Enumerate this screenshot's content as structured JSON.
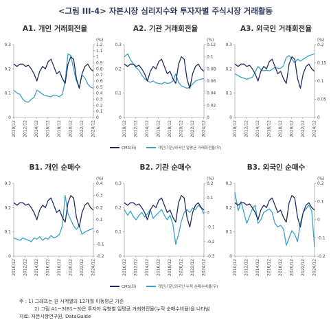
{
  "figure_title": "<그림 III-4> 자본시장 심리지수와 투자자별 주식시장 거래활동",
  "x_ticks": [
    "2010/12",
    "2012/12",
    "2014/12",
    "2016/12",
    "2018/12",
    "2020/12",
    "2022/12",
    "2024/12"
  ],
  "legend_top": {
    "cms": "CMS(좌)",
    "other": "개인/기관/외국인 일평균 거래회전율(우)"
  },
  "legend_bottom": {
    "cms": "CMS(좌)",
    "other": "개인/기관/외국인 누적 순매수비율(우)"
  },
  "colors": {
    "cms": "#1f2a5c",
    "other": "#3aa0c8"
  },
  "notes": {
    "line1": "주   : 1) 그래프는 원 시계열의 12개월 이동평균 기준",
    "line2": "2) 그림 A1~3(B1~3)은 투자자 유형별 일평균 거래회전율(누적 순매수비율)을 나타냄",
    "line3": "자료: 자본시장연구원, DataGuide"
  },
  "chart_data": [
    {
      "type": "line",
      "title": "A1. 개인 거래회전율",
      "right_unit": "(%)",
      "x_start": 2010.9,
      "x_end": 2025.0,
      "ylim_left": [
        0,
        0.3
      ],
      "yticks_left": [
        0,
        0.1,
        0.2,
        0.3
      ],
      "ylim_right": [
        0,
        1.2
      ],
      "yticks_right": [
        0,
        0.1,
        0.2,
        0.3,
        0.4,
        0.5,
        0.6,
        0.7,
        0.8,
        0.9,
        1.0,
        1.1,
        1.2
      ],
      "series": [
        {
          "key": "cms",
          "axis": "left",
          "x": [
            2010.9,
            2011.5,
            2012.0,
            2012.5,
            2013.0,
            2013.5,
            2014.0,
            2014.5,
            2015.0,
            2015.5,
            2016.0,
            2016.5,
            2017.0,
            2017.5,
            2018.0,
            2018.5,
            2019.0,
            2019.5,
            2020.0,
            2020.5,
            2021.0,
            2021.5,
            2022.0,
            2022.5,
            2023.0,
            2023.5,
            2024.0,
            2024.5,
            2025.0
          ],
          "values": [
            0.22,
            0.21,
            0.22,
            0.22,
            0.21,
            0.215,
            0.2,
            0.18,
            0.15,
            0.19,
            0.21,
            0.2,
            0.23,
            0.24,
            0.21,
            0.18,
            0.19,
            0.16,
            0.14,
            0.22,
            0.25,
            0.24,
            0.16,
            0.12,
            0.18,
            0.21,
            0.22,
            0.2,
            0.19
          ]
        },
        {
          "key": "other",
          "axis": "right",
          "x": [
            2010.9,
            2011.5,
            2012.0,
            2012.5,
            2013.0,
            2013.5,
            2014.0,
            2014.5,
            2015.0,
            2015.5,
            2016.0,
            2016.5,
            2017.0,
            2017.5,
            2018.0,
            2018.5,
            2019.0,
            2019.5,
            2020.0,
            2020.5,
            2021.0,
            2021.5,
            2022.0,
            2022.5,
            2023.0,
            2023.5,
            2024.0,
            2024.5,
            2025.0
          ],
          "values": [
            0.45,
            0.4,
            0.38,
            0.3,
            0.26,
            0.25,
            0.3,
            0.33,
            0.45,
            0.42,
            0.38,
            0.36,
            0.35,
            0.34,
            0.37,
            0.36,
            0.34,
            0.38,
            0.6,
            1.05,
            1.02,
            0.8,
            0.6,
            0.5,
            0.7,
            0.65,
            0.55,
            0.5,
            0.48
          ]
        }
      ]
    },
    {
      "type": "line",
      "title": "A2. 기관 거래회전율",
      "right_unit": "(%)",
      "x_start": 2010.9,
      "x_end": 2025.0,
      "ylim_left": [
        0,
        0.3
      ],
      "yticks_left": [
        0,
        0.1,
        0.2,
        0.3
      ],
      "ylim_right": [
        0,
        0.12
      ],
      "yticks_right": [
        0,
        0.02,
        0.04,
        0.06,
        0.08,
        0.1,
        0.12
      ],
      "series": [
        {
          "key": "cms",
          "axis": "left",
          "x": [
            2010.9,
            2011.5,
            2012.0,
            2012.5,
            2013.0,
            2013.5,
            2014.0,
            2014.5,
            2015.0,
            2015.5,
            2016.0,
            2016.5,
            2017.0,
            2017.5,
            2018.0,
            2018.5,
            2019.0,
            2019.5,
            2020.0,
            2020.5,
            2021.0,
            2021.5,
            2022.0,
            2022.5,
            2023.0,
            2023.5,
            2024.0,
            2024.5,
            2025.0
          ],
          "values": [
            0.22,
            0.21,
            0.22,
            0.22,
            0.21,
            0.215,
            0.2,
            0.18,
            0.15,
            0.19,
            0.21,
            0.2,
            0.23,
            0.24,
            0.21,
            0.18,
            0.19,
            0.16,
            0.14,
            0.22,
            0.25,
            0.24,
            0.16,
            0.12,
            0.18,
            0.21,
            0.22,
            0.2,
            0.19
          ]
        },
        {
          "key": "other",
          "axis": "right",
          "x": [
            2010.9,
            2011.5,
            2012.0,
            2012.5,
            2013.0,
            2013.5,
            2014.0,
            2014.5,
            2015.0,
            2015.5,
            2016.0,
            2016.5,
            2017.0,
            2017.5,
            2018.0,
            2018.5,
            2019.0,
            2019.5,
            2020.0,
            2020.5,
            2021.0,
            2021.5,
            2022.0,
            2022.5,
            2023.0,
            2023.5,
            2024.0,
            2024.5,
            2025.0
          ],
          "values": [
            0.1,
            0.105,
            0.095,
            0.088,
            0.082,
            0.078,
            0.07,
            0.064,
            0.06,
            0.058,
            0.06,
            0.057,
            0.056,
            0.055,
            0.058,
            0.056,
            0.057,
            0.06,
            0.072,
            0.058,
            0.052,
            0.05,
            0.048,
            0.05,
            0.055,
            0.06,
            0.062,
            0.063,
            0.064
          ]
        }
      ]
    },
    {
      "type": "line",
      "title": "A3. 외국인 거래회전율",
      "right_unit": "(%)",
      "x_start": 2010.9,
      "x_end": 2025.0,
      "ylim_left": [
        0,
        0.3
      ],
      "yticks_left": [
        0,
        0.1,
        0.2,
        0.3
      ],
      "ylim_right": [
        0,
        0.2
      ],
      "yticks_right": [
        0,
        0.05,
        0.1,
        0.15,
        0.2
      ],
      "series": [
        {
          "key": "cms",
          "axis": "left",
          "x": [
            2010.9,
            2011.5,
            2012.0,
            2012.5,
            2013.0,
            2013.5,
            2014.0,
            2014.5,
            2015.0,
            2015.5,
            2016.0,
            2016.5,
            2017.0,
            2017.5,
            2018.0,
            2018.5,
            2019.0,
            2019.5,
            2020.0,
            2020.5,
            2021.0,
            2021.5,
            2022.0,
            2022.5,
            2023.0,
            2023.5,
            2024.0,
            2024.5,
            2025.0
          ],
          "values": [
            0.22,
            0.21,
            0.22,
            0.22,
            0.21,
            0.215,
            0.2,
            0.18,
            0.15,
            0.19,
            0.21,
            0.2,
            0.23,
            0.24,
            0.21,
            0.18,
            0.19,
            0.16,
            0.14,
            0.22,
            0.25,
            0.24,
            0.16,
            0.12,
            0.18,
            0.21,
            0.22,
            0.2,
            0.19
          ]
        },
        {
          "key": "other",
          "axis": "right",
          "x": [
            2010.9,
            2011.5,
            2012.0,
            2012.5,
            2013.0,
            2013.5,
            2014.0,
            2014.5,
            2015.0,
            2015.5,
            2016.0,
            2016.5,
            2017.0,
            2017.5,
            2018.0,
            2018.5,
            2019.0,
            2019.5,
            2020.0,
            2020.5,
            2021.0,
            2021.5,
            2022.0,
            2022.5,
            2023.0,
            2023.5,
            2024.0,
            2024.5,
            2025.0
          ],
          "values": [
            0.12,
            0.115,
            0.11,
            0.108,
            0.105,
            0.108,
            0.11,
            0.125,
            0.14,
            0.132,
            0.128,
            0.13,
            0.128,
            0.132,
            0.138,
            0.135,
            0.135,
            0.142,
            0.165,
            0.17,
            0.16,
            0.15,
            0.16,
            0.155,
            0.16,
            0.165,
            0.17,
            0.172,
            0.175
          ]
        }
      ]
    },
    {
      "type": "line",
      "title": "B1. 개인 순매수",
      "right_unit": "(%)",
      "x_start": 2010.9,
      "x_end": 2025.0,
      "ylim_left": [
        0,
        0.3
      ],
      "yticks_left": [
        0,
        0.1,
        0.2,
        0.3
      ],
      "ylim_right": [
        -0.2,
        0.4
      ],
      "yticks_right": [
        -0.2,
        -0.1,
        0,
        0.1,
        0.2,
        0.3,
        0.4
      ],
      "series": [
        {
          "key": "cms",
          "axis": "left",
          "x": [
            2010.9,
            2011.5,
            2012.0,
            2012.5,
            2013.0,
            2013.5,
            2014.0,
            2014.5,
            2015.0,
            2015.5,
            2016.0,
            2016.5,
            2017.0,
            2017.5,
            2018.0,
            2018.5,
            2019.0,
            2019.5,
            2020.0,
            2020.5,
            2021.0,
            2021.5,
            2022.0,
            2022.5,
            2023.0,
            2023.5,
            2024.0,
            2024.5,
            2025.0
          ],
          "values": [
            0.22,
            0.21,
            0.22,
            0.22,
            0.21,
            0.215,
            0.2,
            0.18,
            0.15,
            0.19,
            0.21,
            0.2,
            0.23,
            0.24,
            0.21,
            0.18,
            0.19,
            0.16,
            0.14,
            0.22,
            0.25,
            0.24,
            0.16,
            0.12,
            0.18,
            0.21,
            0.22,
            0.2,
            0.19
          ]
        },
        {
          "key": "other",
          "axis": "right",
          "x": [
            2010.9,
            2011.5,
            2012.0,
            2012.5,
            2013.0,
            2013.5,
            2014.0,
            2014.5,
            2015.0,
            2015.5,
            2016.0,
            2016.5,
            2017.0,
            2017.5,
            2018.0,
            2018.5,
            2019.0,
            2019.5,
            2020.0,
            2020.5,
            2021.0,
            2021.5,
            2022.0,
            2022.5,
            2023.0,
            2023.5,
            2024.0,
            2024.5,
            2025.0
          ],
          "values": [
            -0.05,
            -0.06,
            -0.07,
            -0.05,
            -0.06,
            -0.07,
            -0.08,
            -0.05,
            -0.06,
            -0.04,
            -0.07,
            -0.05,
            -0.06,
            -0.03,
            -0.05,
            -0.04,
            -0.02,
            0.05,
            0.3,
            0.15,
            0.1,
            0.05,
            0.02,
            0.05,
            -0.02,
            0.0,
            0.01,
            0.02,
            0.03
          ]
        }
      ]
    },
    {
      "type": "line",
      "title": "B2. 기관 순매수",
      "right_unit": "(%)",
      "x_start": 2010.9,
      "x_end": 2025.0,
      "ylim_left": [
        0,
        0.3
      ],
      "yticks_left": [
        0,
        0.1,
        0.2,
        0.3
      ],
      "ylim_right": [
        -0.3,
        0.2
      ],
      "yticks_right": [
        -0.3,
        -0.2,
        -0.1,
        0,
        0.1,
        0.2
      ],
      "series": [
        {
          "key": "cms",
          "axis": "left",
          "x": [
            2010.9,
            2011.5,
            2012.0,
            2012.5,
            2013.0,
            2013.5,
            2014.0,
            2014.5,
            2015.0,
            2015.5,
            2016.0,
            2016.5,
            2017.0,
            2017.5,
            2018.0,
            2018.5,
            2019.0,
            2019.5,
            2020.0,
            2020.5,
            2021.0,
            2021.5,
            2022.0,
            2022.5,
            2023.0,
            2023.5,
            2024.0,
            2024.5,
            2025.0
          ],
          "values": [
            0.22,
            0.21,
            0.22,
            0.22,
            0.21,
            0.215,
            0.2,
            0.18,
            0.15,
            0.19,
            0.21,
            0.2,
            0.23,
            0.24,
            0.21,
            0.18,
            0.19,
            0.16,
            0.14,
            0.22,
            0.25,
            0.24,
            0.16,
            0.12,
            0.18,
            0.21,
            0.22,
            0.2,
            0.19
          ]
        },
        {
          "key": "other",
          "axis": "right",
          "x": [
            2010.9,
            2011.5,
            2012.0,
            2012.5,
            2013.0,
            2013.5,
            2014.0,
            2014.5,
            2015.0,
            2015.5,
            2016.0,
            2016.5,
            2017.0,
            2017.5,
            2018.0,
            2018.5,
            2019.0,
            2019.5,
            2020.0,
            2020.5,
            2021.0,
            2021.5,
            2022.0,
            2022.5,
            2023.0,
            2023.5,
            2024.0,
            2024.5,
            2025.0
          ],
          "values": [
            0.02,
            -0.02,
            0.01,
            -0.03,
            -0.05,
            -0.02,
            0.0,
            -0.03,
            -0.01,
            0.02,
            -0.04,
            -0.02,
            0.0,
            0.02,
            -0.02,
            -0.05,
            -0.02,
            -0.08,
            -0.22,
            -0.15,
            -0.06,
            0.0,
            0.02,
            0.0,
            0.03,
            0.02,
            0.05,
            0.03,
            -0.01
          ]
        }
      ]
    },
    {
      "type": "line",
      "title": "B3. 외국인 순매수",
      "right_unit": "(%)",
      "x_start": 2010.9,
      "x_end": 2025.0,
      "ylim_left": [
        0,
        0.3
      ],
      "yticks_left": [
        0,
        0.1,
        0.2,
        0.3
      ],
      "ylim_right": [
        -0.2,
        0.2
      ],
      "yticks_right": [
        -0.2,
        -0.1,
        0,
        0.1,
        0.2
      ],
      "series": [
        {
          "key": "cms",
          "axis": "left",
          "x": [
            2010.9,
            2011.5,
            2012.0,
            2012.5,
            2013.0,
            2013.5,
            2014.0,
            2014.5,
            2015.0,
            2015.5,
            2016.0,
            2016.5,
            2017.0,
            2017.5,
            2018.0,
            2018.5,
            2019.0,
            2019.5,
            2020.0,
            2020.5,
            2021.0,
            2021.5,
            2022.0,
            2022.5,
            2023.0,
            2023.5,
            2024.0,
            2024.5,
            2025.0
          ],
          "values": [
            0.22,
            0.21,
            0.22,
            0.22,
            0.21,
            0.215,
            0.2,
            0.18,
            0.15,
            0.19,
            0.21,
            0.2,
            0.23,
            0.24,
            0.21,
            0.18,
            0.19,
            0.16,
            0.14,
            0.22,
            0.25,
            0.24,
            0.16,
            0.12,
            0.18,
            0.21,
            0.22,
            0.2,
            0.19
          ]
        },
        {
          "key": "other",
          "axis": "right",
          "x": [
            2010.9,
            2011.5,
            2012.0,
            2012.5,
            2013.0,
            2013.5,
            2014.0,
            2014.5,
            2015.0,
            2015.5,
            2016.0,
            2016.5,
            2017.0,
            2017.5,
            2018.0,
            2018.5,
            2019.0,
            2019.5,
            2020.0,
            2020.5,
            2021.0,
            2021.5,
            2022.0,
            2022.5,
            2023.0,
            2023.5,
            2024.0,
            2024.5,
            2025.0
          ],
          "values": [
            0.15,
            0.05,
            0.1,
            0.04,
            -0.02,
            0.02,
            0.06,
            0.08,
            -0.02,
            0.0,
            0.04,
            0.05,
            0.06,
            0.04,
            -0.02,
            -0.04,
            -0.03,
            -0.05,
            -0.14,
            -0.1,
            -0.06,
            -0.08,
            -0.12,
            -0.02,
            0.04,
            0.06,
            0.08,
            0.05,
            -0.15
          ]
        }
      ]
    }
  ]
}
